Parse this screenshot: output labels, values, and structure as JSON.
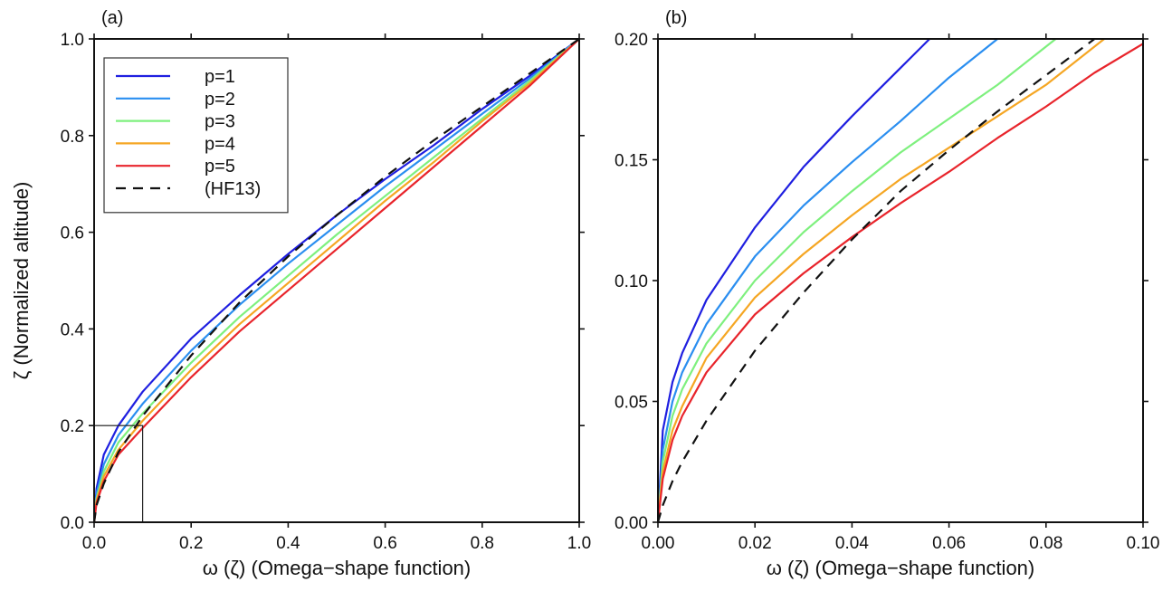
{
  "chart_data": [
    {
      "type": "line",
      "panel_label": "(a)",
      "xlabel": "ω (ζ) (Omega−shape function)",
      "ylabel": "ζ (Normalized altitude)",
      "xlim": [
        0,
        1
      ],
      "ylim": [
        0,
        1
      ],
      "xticks": [
        0,
        0.2,
        0.4,
        0.6,
        0.8,
        1.0
      ],
      "yticks": [
        0,
        0.2,
        0.4,
        0.6,
        0.8,
        1.0
      ],
      "xtick_labels": [
        "0.0",
        "0.2",
        "0.4",
        "0.6",
        "0.8",
        "1.0"
      ],
      "ytick_labels": [
        "0.0",
        "0.2",
        "0.4",
        "0.6",
        "0.8",
        "1.0"
      ],
      "grid": false,
      "legend_position": "top-left",
      "inset_box": {
        "x": [
          0,
          0.1
        ],
        "y": [
          0,
          0.2
        ]
      },
      "series": [
        {
          "name": "p=1",
          "color": "#1f1fe0",
          "style": "solid",
          "x": [
            0,
            0.005,
            0.02,
            0.05,
            0.1,
            0.2,
            0.3,
            0.4,
            0.5,
            0.6,
            0.7,
            0.8,
            0.9,
            1.0
          ],
          "y": [
            0,
            0.07,
            0.14,
            0.2,
            0.27,
            0.38,
            0.47,
            0.555,
            0.635,
            0.71,
            0.78,
            0.855,
            0.925,
            1.0
          ]
        },
        {
          "name": "p=2",
          "color": "#2a8ef0",
          "style": "solid",
          "x": [
            0,
            0.005,
            0.02,
            0.05,
            0.1,
            0.2,
            0.3,
            0.4,
            0.5,
            0.6,
            0.7,
            0.8,
            0.9,
            1.0
          ],
          "y": [
            0,
            0.06,
            0.12,
            0.18,
            0.245,
            0.355,
            0.45,
            0.535,
            0.615,
            0.695,
            0.77,
            0.845,
            0.92,
            1.0
          ]
        },
        {
          "name": "p=3",
          "color": "#7ef07e",
          "style": "solid",
          "x": [
            0,
            0.005,
            0.02,
            0.05,
            0.1,
            0.2,
            0.3,
            0.4,
            0.5,
            0.6,
            0.7,
            0.8,
            0.9,
            1.0
          ],
          "y": [
            0,
            0.05,
            0.105,
            0.165,
            0.225,
            0.33,
            0.425,
            0.51,
            0.595,
            0.675,
            0.755,
            0.835,
            0.915,
            1.0
          ]
        },
        {
          "name": "p=4",
          "color": "#f5a623",
          "style": "solid",
          "x": [
            0,
            0.005,
            0.02,
            0.05,
            0.1,
            0.2,
            0.3,
            0.4,
            0.5,
            0.6,
            0.7,
            0.8,
            0.9,
            1.0
          ],
          "y": [
            0,
            0.045,
            0.095,
            0.15,
            0.21,
            0.315,
            0.41,
            0.495,
            0.58,
            0.665,
            0.745,
            0.83,
            0.91,
            1.0
          ]
        },
        {
          "name": "p=5",
          "color": "#e8242b",
          "style": "solid",
          "x": [
            0,
            0.005,
            0.02,
            0.05,
            0.1,
            0.2,
            0.3,
            0.4,
            0.5,
            0.6,
            0.7,
            0.8,
            0.9,
            1.0
          ],
          "y": [
            0,
            0.04,
            0.085,
            0.14,
            0.195,
            0.3,
            0.395,
            0.48,
            0.565,
            0.65,
            0.735,
            0.82,
            0.905,
            1.0
          ]
        },
        {
          "name": "(HF13)",
          "color": "#111111",
          "style": "dashed",
          "x": [
            0,
            0.005,
            0.02,
            0.05,
            0.1,
            0.2,
            0.3,
            0.4,
            0.5,
            0.6,
            0.7,
            0.8,
            0.9,
            1.0
          ],
          "y": [
            0,
            0.035,
            0.08,
            0.145,
            0.22,
            0.345,
            0.455,
            0.55,
            0.635,
            0.715,
            0.79,
            0.86,
            0.93,
            1.0
          ]
        }
      ]
    },
    {
      "type": "line",
      "panel_label": "(b)",
      "xlabel": "ω (ζ) (Omega−shape function)",
      "ylabel": "",
      "xlim": [
        0,
        0.1
      ],
      "ylim": [
        0,
        0.2
      ],
      "xticks": [
        0,
        0.02,
        0.04,
        0.06,
        0.08,
        0.1
      ],
      "yticks": [
        0,
        0.05,
        0.1,
        0.15,
        0.2
      ],
      "xtick_labels": [
        "0.00",
        "0.02",
        "0.04",
        "0.06",
        "0.08",
        "0.10"
      ],
      "ytick_labels": [
        "0.00",
        "0.05",
        "0.10",
        "0.15",
        "0.20"
      ],
      "grid": false,
      "legend_position": "none",
      "series": [
        {
          "name": "p=1",
          "color": "#1f1fe0",
          "style": "solid",
          "x": [
            0,
            0.001,
            0.003,
            0.005,
            0.01,
            0.02,
            0.03,
            0.04,
            0.05,
            0.056
          ],
          "y": [
            0,
            0.038,
            0.058,
            0.07,
            0.092,
            0.122,
            0.147,
            0.168,
            0.188,
            0.2
          ]
        },
        {
          "name": "p=2",
          "color": "#2a8ef0",
          "style": "solid",
          "x": [
            0,
            0.001,
            0.003,
            0.005,
            0.01,
            0.02,
            0.03,
            0.04,
            0.05,
            0.06,
            0.07
          ],
          "y": [
            0,
            0.03,
            0.05,
            0.062,
            0.082,
            0.11,
            0.131,
            0.149,
            0.166,
            0.184,
            0.2
          ]
        },
        {
          "name": "p=3",
          "color": "#7ef07e",
          "style": "solid",
          "x": [
            0,
            0.001,
            0.003,
            0.005,
            0.01,
            0.02,
            0.03,
            0.04,
            0.05,
            0.06,
            0.07,
            0.082
          ],
          "y": [
            0,
            0.025,
            0.044,
            0.055,
            0.074,
            0.1,
            0.12,
            0.137,
            0.153,
            0.167,
            0.181,
            0.2
          ]
        },
        {
          "name": "p=4",
          "color": "#f5a623",
          "style": "solid",
          "x": [
            0,
            0.001,
            0.003,
            0.005,
            0.01,
            0.02,
            0.03,
            0.04,
            0.05,
            0.06,
            0.07,
            0.08,
            0.092
          ],
          "y": [
            0,
            0.021,
            0.038,
            0.048,
            0.068,
            0.093,
            0.111,
            0.127,
            0.142,
            0.155,
            0.168,
            0.181,
            0.2
          ]
        },
        {
          "name": "p=5",
          "color": "#e8242b",
          "style": "solid",
          "x": [
            0,
            0.001,
            0.003,
            0.005,
            0.01,
            0.02,
            0.03,
            0.04,
            0.05,
            0.06,
            0.07,
            0.08,
            0.09,
            0.1
          ],
          "y": [
            0,
            0.018,
            0.034,
            0.044,
            0.062,
            0.086,
            0.103,
            0.118,
            0.132,
            0.145,
            0.159,
            0.172,
            0.186,
            0.198
          ]
        },
        {
          "name": "(HF13)",
          "color": "#111111",
          "style": "dashed",
          "x": [
            0,
            0.001,
            0.003,
            0.005,
            0.01,
            0.02,
            0.03,
            0.04,
            0.05,
            0.06,
            0.07,
            0.08,
            0.09
          ],
          "y": [
            0,
            0.007,
            0.017,
            0.025,
            0.042,
            0.071,
            0.095,
            0.117,
            0.137,
            0.154,
            0.17,
            0.185,
            0.2
          ]
        }
      ]
    }
  ]
}
